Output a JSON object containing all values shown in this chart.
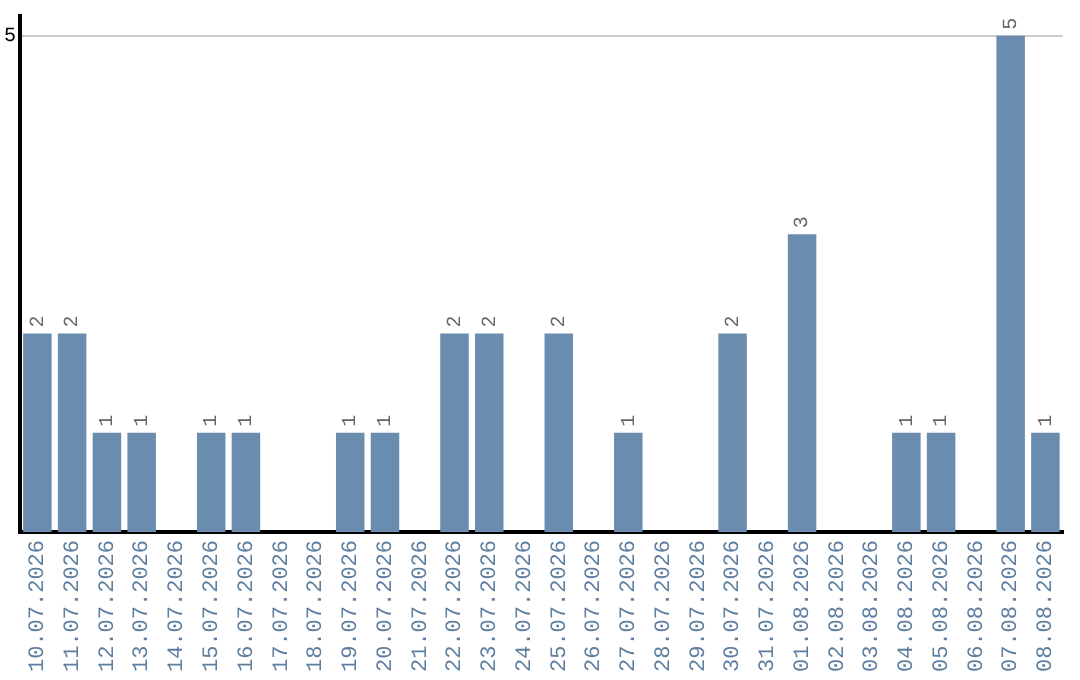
{
  "chart_data": {
    "type": "bar",
    "categories": [
      "10.07.2026",
      "11.07.2026",
      "12.07.2026",
      "13.07.2026",
      "14.07.2026",
      "15.07.2026",
      "16.07.2026",
      "17.07.2026",
      "18.07.2026",
      "19.07.2026",
      "20.07.2026",
      "21.07.2026",
      "22.07.2026",
      "23.07.2026",
      "24.07.2026",
      "25.07.2026",
      "26.07.2026",
      "27.07.2026",
      "28.07.2026",
      "29.07.2026",
      "30.07.2026",
      "31.07.2026",
      "01.08.2026",
      "02.08.2026",
      "03.08.2026",
      "04.08.2026",
      "05.08.2026",
      "06.08.2026",
      "07.08.2026",
      "08.08.2026"
    ],
    "values": [
      2,
      2,
      1,
      1,
      0,
      1,
      1,
      0,
      0,
      1,
      1,
      0,
      2,
      2,
      0,
      2,
      0,
      1,
      0,
      0,
      2,
      0,
      3,
      0,
      0,
      1,
      1,
      0,
      5,
      1
    ],
    "value_labels": [
      "2",
      "2",
      "1",
      "1",
      null,
      "1",
      "1",
      null,
      null,
      "1",
      "1",
      null,
      "2",
      "2",
      null,
      "2",
      null,
      "1",
      null,
      null,
      "2",
      null,
      "3",
      null,
      null,
      "1",
      "1",
      null,
      "5",
      "1"
    ],
    "color": "#6a8caf",
    "ylim": [
      0,
      5.2
    ],
    "yticks": [
      5
    ],
    "grid": "y"
  }
}
